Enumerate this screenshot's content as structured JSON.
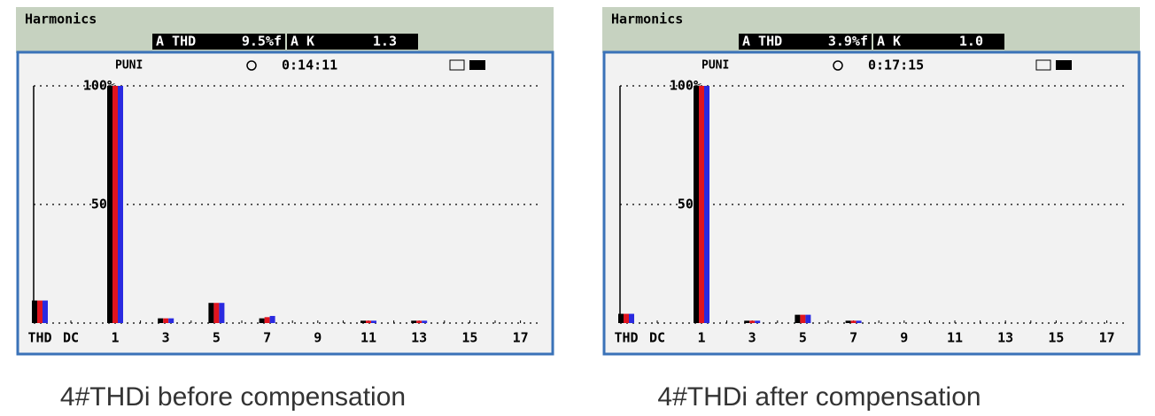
{
  "chart_data": [
    {
      "type": "bar",
      "title": "Harmonics",
      "thd_label": "A THD",
      "thd_value": "9.5%f",
      "k_label": "A K",
      "k_value": "1.3",
      "mode": "PUNI",
      "timer": "0:14:11",
      "caption": "4#THDi before compensation",
      "categories": [
        "THD",
        "DC",
        "1",
        null,
        "3",
        null,
        "5",
        null,
        "7",
        null,
        "9",
        null,
        "11",
        null,
        "13",
        null,
        "15",
        null,
        "17"
      ],
      "series": [
        {
          "color": "#000000",
          "values": [
            9.5,
            0,
            100,
            0,
            2,
            0,
            8.5,
            0,
            2,
            0,
            0,
            0,
            1,
            0,
            1,
            0,
            0,
            0,
            0
          ]
        },
        {
          "color": "#e0141e",
          "values": [
            9.5,
            0,
            100,
            0,
            2,
            0,
            8.5,
            0,
            2.5,
            0,
            0,
            0,
            1,
            0,
            1,
            0,
            0,
            0,
            0
          ]
        },
        {
          "color": "#2a2ae0",
          "values": [
            9.5,
            0,
            100,
            0,
            2,
            0,
            8.5,
            0,
            3,
            0,
            0,
            0,
            1,
            0,
            1,
            0,
            0,
            0,
            0
          ]
        }
      ],
      "ylim": [
        0,
        100
      ],
      "yticks": [
        {
          "value": 50,
          "label": "50%"
        },
        {
          "value": 100,
          "label": "100%"
        }
      ],
      "grid": true
    },
    {
      "type": "bar",
      "title": "Harmonics",
      "thd_label": "A THD",
      "thd_value": "3.9%f",
      "k_label": "A K",
      "k_value": "1.0",
      "mode": "PUNI",
      "timer": "0:17:15",
      "caption": "4#THDi after compensation",
      "categories": [
        "THD",
        "DC",
        "1",
        null,
        "3",
        null,
        "5",
        null,
        "7",
        null,
        "9",
        null,
        "11",
        null,
        "13",
        null,
        "15",
        null,
        "17"
      ],
      "series": [
        {
          "color": "#000000",
          "values": [
            3.9,
            0,
            100,
            0,
            1,
            0,
            3.5,
            0,
            1,
            0,
            0,
            0,
            0,
            0,
            0,
            0,
            0,
            0,
            0
          ]
        },
        {
          "color": "#e0141e",
          "values": [
            3.9,
            0,
            100,
            0,
            1,
            0,
            3.5,
            0,
            1,
            0,
            0,
            0,
            0,
            0,
            0,
            0,
            0,
            0,
            0
          ]
        },
        {
          "color": "#2a2ae0",
          "values": [
            3.9,
            0,
            100,
            0,
            1,
            0,
            3.5,
            0,
            1,
            0,
            0,
            0,
            0,
            0,
            0,
            0,
            0,
            0,
            0
          ]
        }
      ],
      "ylim": [
        0,
        100
      ],
      "yticks": [
        {
          "value": 50,
          "label": "50%"
        },
        {
          "value": 100,
          "label": "100%"
        }
      ],
      "grid": true
    }
  ]
}
